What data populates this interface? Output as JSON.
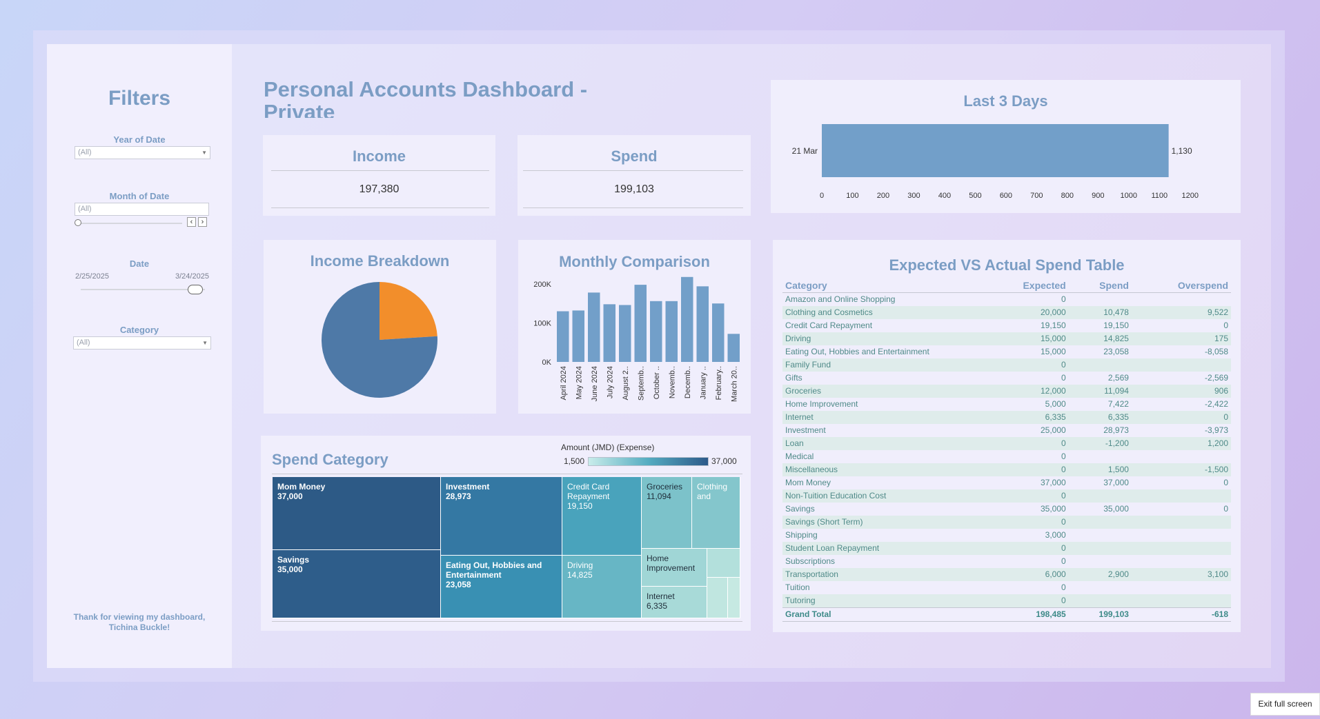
{
  "sidebar": {
    "title": "Filters",
    "year_label": "Year of Date",
    "year_value": "(All)",
    "month_label": "Month of Date",
    "month_value": "(All)",
    "date_label": "Date",
    "date_start": "2/25/2025",
    "date_end": "3/24/2025",
    "category_label": "Category",
    "category_value": "(All)",
    "thanks_line1": "Thank for viewing my dashboard,",
    "thanks_line2": "Tichina Buckle!"
  },
  "header": {
    "title": "Personal Accounts Dashboard - Private"
  },
  "kpis": {
    "income_title": "Income",
    "income_value": "197,380",
    "spend_title": "Spend",
    "spend_value": "199,103"
  },
  "last3": {
    "title": "Last 3 Days"
  },
  "income_breakdown": {
    "title": "Income Breakdown"
  },
  "monthly": {
    "title": "Monthly Comparison"
  },
  "spend_category": {
    "title": "Spend Category",
    "legend_title": "Amount (JMD) (Expense)",
    "legend_min": "1,500",
    "legend_max": "37,000",
    "tiles": [
      {
        "name": "Mom Money",
        "value": "37,000"
      },
      {
        "name": "Savings",
        "value": "35,000"
      },
      {
        "name": "Investment",
        "value": "28,973"
      },
      {
        "name": "Eating Out, Hobbies and Entertainment",
        "value": "23,058"
      },
      {
        "name": "Credit Card Repayment",
        "value": "19,150"
      },
      {
        "name": "Driving",
        "value": "14,825"
      },
      {
        "name": "Groceries",
        "value": "11,094"
      },
      {
        "name": "Clothing and",
        "value": ""
      },
      {
        "name": "Home Improvement",
        "value": ""
      },
      {
        "name": "Internet",
        "value": "6,335"
      }
    ]
  },
  "spend_table": {
    "title": "Expected VS Actual Spend Table",
    "headers": [
      "Category",
      "Expected",
      "Spend",
      "Overspend"
    ],
    "rows": [
      [
        "Amazon and Online Shopping",
        "0",
        "",
        ""
      ],
      [
        "Clothing and Cosmetics",
        "20,000",
        "10,478",
        "9,522"
      ],
      [
        "Credit Card Repayment",
        "19,150",
        "19,150",
        "0"
      ],
      [
        "Driving",
        "15,000",
        "14,825",
        "175"
      ],
      [
        "Eating Out, Hobbies and Entertainment",
        "15,000",
        "23,058",
        "-8,058"
      ],
      [
        "Family Fund",
        "0",
        "",
        ""
      ],
      [
        "Gifts",
        "0",
        "2,569",
        "-2,569"
      ],
      [
        "Groceries",
        "12,000",
        "11,094",
        "906"
      ],
      [
        "Home Improvement",
        "5,000",
        "7,422",
        "-2,422"
      ],
      [
        "Internet",
        "6,335",
        "6,335",
        "0"
      ],
      [
        "Investment",
        "25,000",
        "28,973",
        "-3,973"
      ],
      [
        "Loan",
        "0",
        "-1,200",
        "1,200"
      ],
      [
        "Medical",
        "0",
        "",
        ""
      ],
      [
        "Miscellaneous",
        "0",
        "1,500",
        "-1,500"
      ],
      [
        "Mom Money",
        "37,000",
        "37,000",
        "0"
      ],
      [
        "Non-Tuition Education Cost",
        "0",
        "",
        ""
      ],
      [
        "Savings",
        "35,000",
        "35,000",
        "0"
      ],
      [
        "Savings (Short Term)",
        "0",
        "",
        ""
      ],
      [
        "Shipping",
        "3,000",
        "",
        ""
      ],
      [
        "Student Loan Repayment",
        "0",
        "",
        ""
      ],
      [
        "Subscriptions",
        "0",
        "",
        ""
      ],
      [
        "Transportation",
        "6,000",
        "2,900",
        "3,100"
      ],
      [
        "Tuition",
        "0",
        "",
        ""
      ],
      [
        "Tutoring",
        "0",
        "",
        ""
      ]
    ],
    "total": [
      "Grand Total",
      "198,485",
      "199,103",
      "-618"
    ]
  },
  "exit_fullscreen": "Exit full screen",
  "chart_data": [
    {
      "type": "bar",
      "orientation": "horizontal",
      "title": "Last 3 Days",
      "categories": [
        "21 Mar"
      ],
      "values": [
        1130
      ],
      "value_labels": [
        "1,130"
      ],
      "xlim": [
        0,
        1250
      ],
      "xticks": [
        0,
        100,
        200,
        300,
        400,
        500,
        600,
        700,
        800,
        900,
        1000,
        1100,
        1200
      ],
      "color": "#729fc9"
    },
    {
      "type": "pie",
      "title": "Income Breakdown",
      "slices": [
        {
          "value": 24,
          "color": "#f28e2b"
        },
        {
          "value": 76,
          "color": "#4e79a7"
        }
      ]
    },
    {
      "type": "bar",
      "title": "Monthly Comparison",
      "categories": [
        "April 2024",
        "May 2024",
        "June 2024",
        "July 2024",
        "August 2..",
        "Septemb..",
        "October ..",
        "Novemb..",
        "Decemb..",
        "January ..",
        "February..",
        "March 20.."
      ],
      "values": [
        130000,
        132000,
        178000,
        148000,
        146000,
        198000,
        156000,
        156000,
        218000,
        194000,
        150000,
        72000
      ],
      "ylim": [
        0,
        230000
      ],
      "yticks": [
        0,
        100000,
        200000
      ],
      "ytick_labels": [
        "0K",
        "100K",
        "200K"
      ],
      "color": "#729fc9"
    }
  ]
}
